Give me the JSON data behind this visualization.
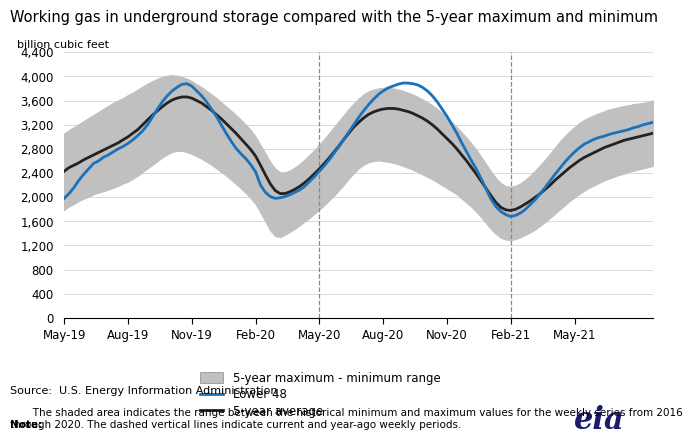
{
  "title": "Working gas in underground storage compared with the 5-year maximum and minimum",
  "ylabel": "billion cubic feet",
  "source_text": "Source:  U.S. Energy Information Administration",
  "note_text": "Note: The shaded area indicates the range between the historical minimum and maximum values for the weekly series from 2016\nthrough 2020. The dashed vertical lines indicate current and year-ago weekly periods.",
  "ylim": [
    0,
    4400
  ],
  "yticks": [
    0,
    400,
    800,
    1200,
    1600,
    2000,
    2400,
    2800,
    3200,
    3600,
    4000,
    4400
  ],
  "xtick_labels": [
    "May-19",
    "Aug-19",
    "Nov-19",
    "Feb-20",
    "May-20",
    "Aug-20",
    "Nov-20",
    "Feb-21",
    "May-21"
  ],
  "dashed_vline_x": [
    52,
    91
  ],
  "band_color": "#c0c0c0",
  "lower48_color": "#1a72bb",
  "avg_color": "#222222",
  "lower48_lw": 2.0,
  "avg_lw": 2.0,
  "x": [
    0,
    1,
    2,
    3,
    4,
    5,
    6,
    7,
    8,
    9,
    10,
    11,
    12,
    13,
    14,
    15,
    16,
    17,
    18,
    19,
    20,
    21,
    22,
    23,
    24,
    25,
    26,
    27,
    28,
    29,
    30,
    31,
    32,
    33,
    34,
    35,
    36,
    37,
    38,
    39,
    40,
    41,
    42,
    43,
    44,
    45,
    46,
    47,
    48,
    49,
    50,
    51,
    52,
    53,
    54,
    55,
    56,
    57,
    58,
    59,
    60,
    61,
    62,
    63,
    64,
    65,
    66,
    67,
    68,
    69,
    70,
    71,
    72,
    73,
    74,
    75,
    76,
    77,
    78,
    79,
    80,
    81,
    82,
    83,
    84,
    85,
    86,
    87,
    88,
    89,
    90,
    91,
    92,
    93,
    94,
    95,
    96,
    97,
    98,
    99,
    100,
    101,
    102,
    103,
    104,
    105,
    106,
    107,
    108,
    109,
    110,
    111,
    112,
    113,
    114,
    115,
    116,
    117,
    118,
    119,
    120
  ],
  "lower48": [
    1980,
    2060,
    2160,
    2280,
    2380,
    2470,
    2560,
    2600,
    2660,
    2700,
    2750,
    2800,
    2840,
    2890,
    2950,
    3020,
    3100,
    3200,
    3330,
    3460,
    3580,
    3680,
    3760,
    3820,
    3870,
    3880,
    3840,
    3760,
    3680,
    3580,
    3460,
    3340,
    3200,
    3060,
    2930,
    2810,
    2720,
    2640,
    2540,
    2420,
    2200,
    2080,
    2010,
    1980,
    1990,
    2010,
    2040,
    2080,
    2120,
    2180,
    2260,
    2340,
    2430,
    2520,
    2620,
    2730,
    2840,
    2960,
    3080,
    3200,
    3320,
    3430,
    3530,
    3620,
    3700,
    3760,
    3810,
    3840,
    3870,
    3890,
    3890,
    3880,
    3860,
    3820,
    3760,
    3680,
    3580,
    3460,
    3340,
    3200,
    3060,
    2900,
    2750,
    2600,
    2460,
    2300,
    2130,
    1960,
    1840,
    1760,
    1710,
    1680,
    1700,
    1740,
    1800,
    1880,
    1960,
    2060,
    2160,
    2270,
    2380,
    2480,
    2580,
    2670,
    2750,
    2820,
    2880,
    2920,
    2960,
    2990,
    3010,
    3040,
    3060,
    3080,
    3100,
    3120,
    3150,
    3170,
    3200,
    3220,
    3240
  ],
  "avg5yr": [
    2430,
    2490,
    2530,
    2570,
    2620,
    2660,
    2700,
    2740,
    2780,
    2820,
    2860,
    2900,
    2950,
    3000,
    3060,
    3120,
    3200,
    3280,
    3360,
    3430,
    3500,
    3560,
    3610,
    3640,
    3660,
    3660,
    3640,
    3600,
    3560,
    3500,
    3440,
    3370,
    3300,
    3220,
    3140,
    3060,
    2970,
    2880,
    2790,
    2680,
    2530,
    2370,
    2220,
    2110,
    2060,
    2060,
    2090,
    2130,
    2180,
    2240,
    2310,
    2390,
    2470,
    2560,
    2650,
    2750,
    2850,
    2960,
    3060,
    3160,
    3240,
    3310,
    3370,
    3410,
    3440,
    3460,
    3470,
    3470,
    3460,
    3440,
    3420,
    3390,
    3350,
    3310,
    3260,
    3200,
    3130,
    3050,
    2970,
    2890,
    2800,
    2700,
    2600,
    2490,
    2380,
    2260,
    2140,
    2020,
    1910,
    1830,
    1790,
    1780,
    1800,
    1840,
    1890,
    1940,
    2000,
    2060,
    2130,
    2200,
    2280,
    2350,
    2420,
    2490,
    2550,
    2610,
    2660,
    2700,
    2740,
    2780,
    2820,
    2850,
    2880,
    2910,
    2940,
    2960,
    2980,
    3000,
    3020,
    3040,
    3060
  ],
  "band_max": [
    3050,
    3110,
    3160,
    3210,
    3260,
    3310,
    3360,
    3410,
    3460,
    3510,
    3560,
    3600,
    3640,
    3690,
    3730,
    3780,
    3830,
    3880,
    3920,
    3960,
    3990,
    4010,
    4020,
    4010,
    3990,
    3960,
    3920,
    3870,
    3820,
    3760,
    3700,
    3640,
    3570,
    3500,
    3430,
    3360,
    3280,
    3200,
    3110,
    3000,
    2860,
    2720,
    2580,
    2470,
    2410,
    2410,
    2440,
    2490,
    2550,
    2620,
    2700,
    2780,
    2870,
    2960,
    3060,
    3160,
    3260,
    3360,
    3460,
    3550,
    3630,
    3700,
    3750,
    3780,
    3800,
    3810,
    3810,
    3800,
    3780,
    3760,
    3730,
    3700,
    3660,
    3620,
    3570,
    3520,
    3460,
    3390,
    3320,
    3240,
    3160,
    3070,
    2980,
    2880,
    2780,
    2660,
    2540,
    2420,
    2310,
    2230,
    2180,
    2170,
    2190,
    2230,
    2290,
    2360,
    2440,
    2530,
    2620,
    2720,
    2820,
    2920,
    3010,
    3090,
    3160,
    3230,
    3280,
    3320,
    3360,
    3390,
    3420,
    3450,
    3470,
    3490,
    3510,
    3520,
    3540,
    3550,
    3560,
    3580,
    3600
  ],
  "band_min": [
    1790,
    1850,
    1890,
    1940,
    1980,
    2010,
    2050,
    2080,
    2100,
    2130,
    2160,
    2190,
    2230,
    2260,
    2310,
    2360,
    2420,
    2480,
    2540,
    2600,
    2660,
    2710,
    2750,
    2770,
    2770,
    2750,
    2720,
    2680,
    2640,
    2590,
    2540,
    2480,
    2420,
    2360,
    2290,
    2220,
    2150,
    2070,
    1990,
    1890,
    1750,
    1600,
    1450,
    1360,
    1340,
    1380,
    1430,
    1480,
    1540,
    1600,
    1660,
    1730,
    1800,
    1870,
    1950,
    2030,
    2120,
    2210,
    2310,
    2400,
    2480,
    2540,
    2580,
    2600,
    2610,
    2600,
    2590,
    2570,
    2550,
    2520,
    2490,
    2460,
    2420,
    2380,
    2340,
    2300,
    2250,
    2200,
    2150,
    2100,
    2050,
    1980,
    1910,
    1840,
    1760,
    1670,
    1570,
    1470,
    1390,
    1330,
    1300,
    1290,
    1310,
    1340,
    1380,
    1420,
    1470,
    1530,
    1590,
    1660,
    1730,
    1800,
    1870,
    1940,
    2000,
    2060,
    2110,
    2160,
    2200,
    2240,
    2280,
    2310,
    2340,
    2370,
    2390,
    2420,
    2440,
    2460,
    2480,
    2500,
    2520
  ]
}
